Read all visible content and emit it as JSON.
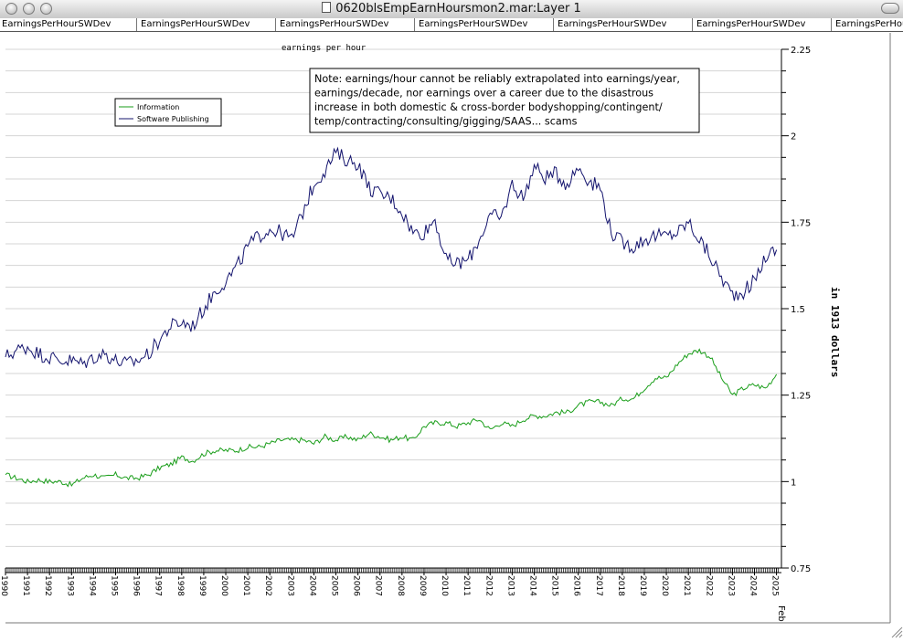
{
  "window": {
    "title": "0620blsEmpEarnHoursmon2.mar:Layer 1"
  },
  "tabs": [
    "EarningsPerHourSWDev",
    "EarningsPerHourSWDev",
    "EarningsPerHourSWDev",
    "EarningsPerHourSWDev",
    "EarningsPerHourSWDev",
    "EarningsPerHourSWDev",
    "EarningsPerHourSWDev"
  ],
  "chart_data": {
    "type": "line",
    "title": "earnings per hour",
    "ylabel": "in 1913 dollars",
    "ylim": [
      0.75,
      2.25
    ],
    "yticks": [
      "2.25",
      "2",
      "1.75",
      "1.5",
      "1.25",
      "1",
      "0.75"
    ],
    "yticks_values": [
      2.25,
      2,
      1.75,
      1.5,
      1.25,
      1,
      0.75
    ],
    "xlim": [
      1990.0,
      2025.1
    ],
    "xtick_years": [
      1990,
      1991,
      1992,
      1993,
      1994,
      1995,
      1996,
      1997,
      1998,
      1999,
      2000,
      2001,
      2002,
      2003,
      2004,
      2005,
      2006,
      2007,
      2008,
      2009,
      2010,
      2011,
      2012,
      2013,
      2014,
      2015,
      2016,
      2017,
      2018,
      2019,
      2020,
      2021,
      2022,
      2023,
      2024,
      2025
    ],
    "xtick_labels": [
      "1990",
      "1991",
      "1992",
      "1993",
      "1994",
      "1995",
      "1996",
      "1997",
      "1998",
      "1999",
      "2000",
      "2001",
      "2002",
      "2003",
      "2004",
      "2005",
      "2006",
      "2007",
      "2008",
      "2009",
      "2010",
      "2011",
      "2012",
      "2013",
      "2014",
      "2015",
      "2016",
      "2017",
      "2018",
      "2019",
      "2020",
      "2021",
      "2022",
      "2023",
      "2024",
      "2025"
    ],
    "end_label": "Feb",
    "grid": true,
    "legend_position": "top-left",
    "note": "Note: earnings/hour cannot be reliably extrapolated into earnings/year, earnings/decade, nor earnings over a career due to the disastrous increase in both domestic & cross-border bodyshopping/contingent/ temp/contracting/consulting/gigging/SAAS... scams",
    "series": [
      {
        "name": "Information",
        "color": "#1a9e1a",
        "x": [
          1990.0,
          1990.5,
          1991.0,
          1991.5,
          1992.0,
          1992.5,
          1993.0,
          1993.5,
          1994.0,
          1994.5,
          1995.0,
          1995.5,
          1996.0,
          1996.5,
          1997.0,
          1997.5,
          1998.0,
          1998.5,
          1999.0,
          1999.5,
          2000.0,
          2000.5,
          2001.0,
          2001.5,
          2002.0,
          2002.5,
          2003.0,
          2003.5,
          2004.0,
          2004.5,
          2005.0,
          2005.5,
          2006.0,
          2006.5,
          2007.0,
          2007.5,
          2008.0,
          2008.5,
          2009.0,
          2009.5,
          2010.0,
          2010.5,
          2011.0,
          2011.5,
          2012.0,
          2012.5,
          2013.0,
          2013.5,
          2014.0,
          2014.5,
          2015.0,
          2015.5,
          2016.0,
          2016.5,
          2017.0,
          2017.5,
          2018.0,
          2018.5,
          2019.0,
          2019.5,
          2020.0,
          2020.5,
          2021.0,
          2021.5,
          2022.0,
          2022.5,
          2023.0,
          2023.5,
          2024.0,
          2024.5,
          2025.0
        ],
        "y": [
          1.02,
          1.01,
          1.0,
          1.005,
          1.0,
          1.0,
          0.99,
          1.01,
          1.02,
          1.01,
          1.02,
          1.01,
          1.01,
          1.02,
          1.04,
          1.05,
          1.07,
          1.06,
          1.08,
          1.09,
          1.09,
          1.09,
          1.1,
          1.1,
          1.11,
          1.12,
          1.12,
          1.12,
          1.11,
          1.13,
          1.12,
          1.13,
          1.12,
          1.14,
          1.13,
          1.12,
          1.13,
          1.12,
          1.16,
          1.17,
          1.17,
          1.16,
          1.17,
          1.18,
          1.15,
          1.17,
          1.16,
          1.18,
          1.19,
          1.19,
          1.2,
          1.2,
          1.22,
          1.23,
          1.23,
          1.22,
          1.24,
          1.24,
          1.27,
          1.3,
          1.3,
          1.34,
          1.37,
          1.38,
          1.36,
          1.3,
          1.25,
          1.27,
          1.28,
          1.27,
          1.31
        ]
      },
      {
        "name": "Software Publishing",
        "color": "#14146e",
        "x": [
          1990.0,
          1990.5,
          1991.0,
          1991.5,
          1992.0,
          1992.5,
          1993.0,
          1993.5,
          1994.0,
          1994.5,
          1995.0,
          1995.5,
          1996.0,
          1996.5,
          1997.0,
          1997.5,
          1998.0,
          1998.5,
          1999.0,
          1999.5,
          2000.0,
          2000.5,
          2001.0,
          2001.5,
          2002.0,
          2002.5,
          2003.0,
          2003.5,
          2004.0,
          2004.5,
          2005.0,
          2005.5,
          2006.0,
          2006.5,
          2007.0,
          2007.5,
          2008.0,
          2008.5,
          2009.0,
          2009.5,
          2010.0,
          2010.5,
          2011.0,
          2011.5,
          2012.0,
          2012.5,
          2013.0,
          2013.5,
          2014.0,
          2014.5,
          2015.0,
          2015.5,
          2016.0,
          2016.5,
          2017.0,
          2017.5,
          2018.0,
          2018.5,
          2019.0,
          2019.5,
          2020.0,
          2020.5,
          2021.0,
          2021.5,
          2022.0,
          2022.5,
          2023.0,
          2023.5,
          2024.0,
          2024.5,
          2025.0
        ],
        "y": [
          1.36,
          1.38,
          1.39,
          1.37,
          1.36,
          1.35,
          1.35,
          1.34,
          1.36,
          1.37,
          1.35,
          1.34,
          1.35,
          1.37,
          1.41,
          1.45,
          1.46,
          1.45,
          1.5,
          1.55,
          1.58,
          1.62,
          1.68,
          1.71,
          1.73,
          1.72,
          1.7,
          1.78,
          1.86,
          1.9,
          1.95,
          1.93,
          1.92,
          1.85,
          1.83,
          1.82,
          1.78,
          1.72,
          1.72,
          1.76,
          1.64,
          1.63,
          1.64,
          1.7,
          1.77,
          1.76,
          1.86,
          1.82,
          1.91,
          1.88,
          1.89,
          1.86,
          1.91,
          1.87,
          1.85,
          1.72,
          1.69,
          1.68,
          1.7,
          1.71,
          1.71,
          1.72,
          1.75,
          1.7,
          1.65,
          1.59,
          1.54,
          1.55,
          1.58,
          1.65,
          1.67
        ]
      }
    ]
  }
}
